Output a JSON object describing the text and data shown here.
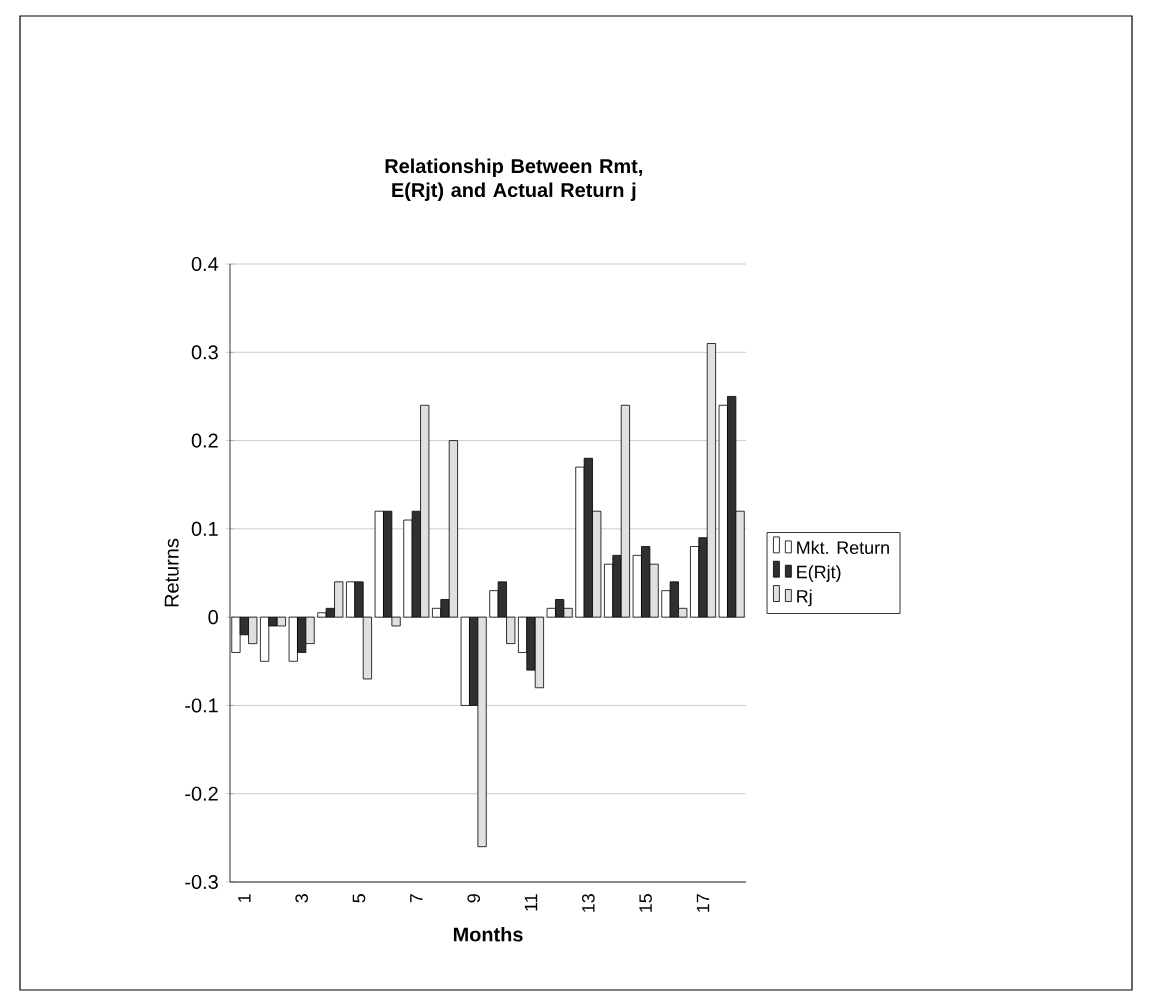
{
  "chart_data": {
    "type": "bar",
    "title": "Relationship Between  Rmt,  E(Rjt) and Actual Return j",
    "xlabel": "Months",
    "ylabel": "Returns",
    "categories": [
      "1",
      null,
      "3",
      null,
      "5",
      null,
      "7",
      null,
      "9",
      null,
      "11",
      null,
      "13",
      null,
      "15",
      null,
      "17",
      null
    ],
    "series": [
      {
        "name": "Mkt. Return",
        "color": "#ffffff",
        "values": [
          -0.04,
          -0.05,
          -0.05,
          0.005,
          0.04,
          0.12,
          0.11,
          0.01,
          -0.1,
          0.03,
          -0.04,
          0.01,
          0.17,
          0.06,
          0.07,
          0.03,
          0.08,
          0.24
        ]
      },
      {
        "name": "E(Rjt)",
        "color": "#303030",
        "values": [
          -0.02,
          -0.01,
          -0.04,
          0.01,
          0.04,
          0.12,
          0.12,
          0.02,
          -0.1,
          0.04,
          -0.06,
          0.02,
          0.18,
          0.07,
          0.08,
          0.04,
          0.09,
          0.25
        ]
      },
      {
        "name": "Rj",
        "color": "#e0e0e0",
        "values": [
          -0.03,
          -0.01,
          -0.03,
          0.04,
          -0.07,
          -0.01,
          0.24,
          0.2,
          -0.26,
          -0.03,
          -0.08,
          0.01,
          0.12,
          0.24,
          0.06,
          0.01,
          0.31,
          0.12
        ]
      }
    ],
    "ylim": [
      -0.3,
      0.4
    ],
    "yticks": [
      -0.3,
      -0.2,
      -0.1,
      0,
      0.1,
      0.2,
      0.3,
      0.4
    ],
    "grid": "y",
    "legend": "right"
  }
}
